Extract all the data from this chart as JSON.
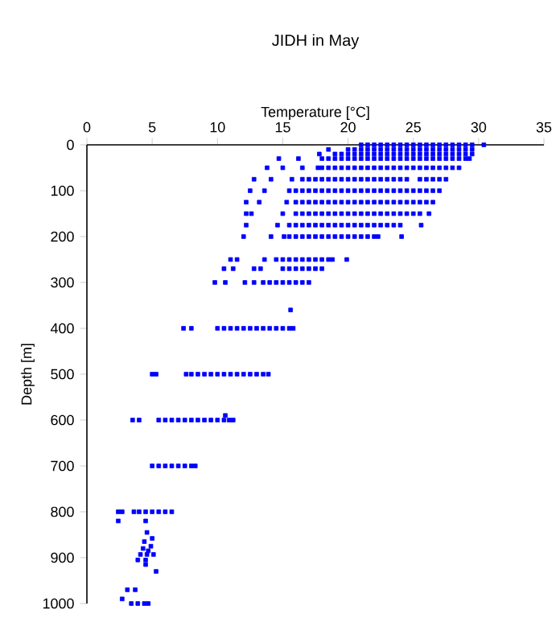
{
  "chart_data": {
    "type": "scatter",
    "title": "JIDH in May",
    "xlabel": "Temperature [°C]",
    "ylabel": "Depth [m]",
    "xlim": [
      0,
      35
    ],
    "xticks": [
      0,
      5,
      10,
      15,
      20,
      25,
      30,
      35
    ],
    "ylim": [
      1000,
      0
    ],
    "yticks": [
      0,
      100,
      200,
      300,
      400,
      500,
      600,
      700,
      800,
      900,
      1000
    ],
    "marker": "square",
    "series": [
      {
        "color": "#0000ff",
        "x": [
          21,
          21.5,
          22,
          22.5,
          23,
          23.5,
          24,
          24.5,
          25,
          25.5,
          26,
          26.5,
          27,
          27.5,
          28,
          28.5,
          29,
          29.5,
          30.4
        ],
        "values": [
          0,
          0,
          0,
          0,
          0,
          0,
          0,
          0,
          0,
          0,
          0,
          0,
          0,
          0,
          0,
          0,
          0,
          0,
          0
        ]
      },
      {
        "color": "#0000ff",
        "x": [
          18.5,
          20,
          20.5,
          21,
          21.5,
          22,
          22.5,
          23,
          23.5,
          24,
          24.5,
          25,
          25.5,
          26,
          26.5,
          27,
          27.5,
          28,
          28.5,
          29,
          29.5
        ],
        "values": [
          10,
          10,
          10,
          10,
          10,
          10,
          10,
          10,
          10,
          10,
          10,
          10,
          10,
          10,
          10,
          10,
          10,
          10,
          10,
          10,
          10
        ]
      },
      {
        "color": "#0000ff",
        "x": [
          17.8,
          19,
          19.5,
          20,
          20.5,
          21,
          21.5,
          22,
          22.5,
          23,
          23.5,
          24,
          24.5,
          25,
          25.5,
          26,
          26.5,
          27,
          27.5,
          28,
          28.5,
          29,
          29.5
        ],
        "values": [
          20,
          20,
          20,
          20,
          20,
          20,
          20,
          20,
          20,
          20,
          20,
          20,
          20,
          20,
          20,
          20,
          20,
          20,
          20,
          20,
          20,
          20,
          20
        ]
      },
      {
        "color": "#0000ff",
        "x": [
          14.7,
          16.2,
          18,
          18.5,
          19,
          19.5,
          20,
          20.5,
          21,
          21.5,
          22,
          22.5,
          23,
          23.5,
          24,
          24.5,
          25,
          25.5,
          26,
          26.5,
          27,
          27.5,
          28,
          28.5,
          29,
          29.3
        ],
        "values": [
          30,
          30,
          30,
          30,
          30,
          30,
          30,
          30,
          30,
          30,
          30,
          30,
          30,
          30,
          30,
          30,
          30,
          30,
          30,
          30,
          30,
          30,
          30,
          30,
          30,
          30
        ]
      },
      {
        "color": "#0000ff",
        "x": [
          13.8,
          15,
          16.5,
          17.7,
          18,
          18.5,
          19,
          19.5,
          20,
          20.5,
          21,
          21.5,
          22,
          22.5,
          23,
          23.5,
          24,
          24.5,
          25,
          25.5,
          26,
          26.5,
          27,
          27.5,
          28,
          28.5
        ],
        "values": [
          50,
          50,
          50,
          50,
          50,
          50,
          50,
          50,
          50,
          50,
          50,
          50,
          50,
          50,
          50,
          50,
          50,
          50,
          50,
          50,
          50,
          50,
          50,
          50,
          50,
          50
        ]
      },
      {
        "color": "#0000ff",
        "x": [
          12.8,
          14.1,
          15.7,
          16.5,
          17,
          17.5,
          18,
          18.5,
          19,
          19.5,
          20,
          20.5,
          21,
          21.5,
          22,
          22.5,
          23,
          23.5,
          24,
          24.5,
          25.5,
          26,
          26.5,
          27,
          27.5
        ],
        "values": [
          75,
          75,
          75,
          75,
          75,
          75,
          75,
          75,
          75,
          75,
          75,
          75,
          75,
          75,
          75,
          75,
          75,
          75,
          75,
          75,
          75,
          75,
          75,
          75,
          75
        ]
      },
      {
        "color": "#0000ff",
        "x": [
          12.5,
          13.6,
          15.5,
          16,
          16.5,
          17,
          17.5,
          18,
          18.5,
          19,
          19.5,
          20,
          20.5,
          21,
          21.5,
          22,
          22.5,
          23,
          23.5,
          24,
          24.5,
          25,
          25.5,
          26,
          26.5,
          27
        ],
        "values": [
          100,
          100,
          100,
          100,
          100,
          100,
          100,
          100,
          100,
          100,
          100,
          100,
          100,
          100,
          100,
          100,
          100,
          100,
          100,
          100,
          100,
          100,
          100,
          100,
          100,
          100
        ]
      },
      {
        "color": "#0000ff",
        "x": [
          12.2,
          13.2,
          15.3,
          16,
          16.5,
          17,
          17.5,
          18,
          18.5,
          19,
          19.5,
          20,
          20.5,
          21,
          21.5,
          22,
          22.5,
          23,
          23.5,
          24,
          24.5,
          25,
          25.5,
          26,
          26.5
        ],
        "values": [
          125,
          125,
          125,
          125,
          125,
          125,
          125,
          125,
          125,
          125,
          125,
          125,
          125,
          125,
          125,
          125,
          125,
          125,
          125,
          125,
          125,
          125,
          125,
          125,
          125
        ]
      },
      {
        "color": "#0000ff",
        "x": [
          12.2,
          12.6,
          15,
          16,
          16.5,
          17,
          17.5,
          18,
          18.5,
          19,
          19.5,
          20,
          20.5,
          21,
          21.5,
          22,
          22.5,
          23,
          23.5,
          24,
          24.5,
          25,
          25.5,
          26.2
        ],
        "values": [
          150,
          150,
          150,
          150,
          150,
          150,
          150,
          150,
          150,
          150,
          150,
          150,
          150,
          150,
          150,
          150,
          150,
          150,
          150,
          150,
          150,
          150,
          150,
          150
        ]
      },
      {
        "color": "#0000ff",
        "x": [
          12.2,
          14.6,
          15.5,
          16,
          16.5,
          17,
          17.5,
          18,
          18.5,
          19,
          19.5,
          20,
          20.5,
          21,
          21.5,
          22,
          22.5,
          23,
          23.5,
          24,
          25.6
        ],
        "values": [
          175,
          175,
          175,
          175,
          175,
          175,
          175,
          175,
          175,
          175,
          175,
          175,
          175,
          175,
          175,
          175,
          175,
          175,
          175,
          175,
          175
        ]
      },
      {
        "color": "#0000ff",
        "x": [
          12,
          14.1,
          15.1,
          15.5,
          16,
          16.5,
          17,
          17.5,
          18,
          18.5,
          19,
          19.5,
          20,
          20.5,
          21,
          21.5,
          22,
          22.3,
          24.1
        ],
        "values": [
          200,
          200,
          200,
          200,
          200,
          200,
          200,
          200,
          200,
          200,
          200,
          200,
          200,
          200,
          200,
          200,
          200,
          200,
          200
        ]
      },
      {
        "color": "#0000ff",
        "x": [
          11,
          11.5,
          13.6,
          14.5,
          15,
          15.5,
          16,
          16.5,
          17,
          17.5,
          18,
          18.5,
          18.8,
          19.9
        ],
        "values": [
          250,
          250,
          250,
          250,
          250,
          250,
          250,
          250,
          250,
          250,
          250,
          250,
          250,
          250
        ]
      },
      {
        "color": "#0000ff",
        "x": [
          10.5,
          11.2,
          12.8,
          13.3,
          15,
          15.5,
          16,
          16.5,
          17,
          17.5,
          18
        ],
        "values": [
          270,
          270,
          270,
          270,
          270,
          270,
          270,
          270,
          270,
          270,
          270
        ]
      },
      {
        "color": "#0000ff",
        "x": [
          9.8,
          10.6,
          12.1,
          12.8,
          13.5,
          14,
          14.5,
          15,
          15.5,
          16,
          16.5,
          17
        ],
        "values": [
          300,
          300,
          300,
          300,
          300,
          300,
          300,
          300,
          300,
          300,
          300,
          300
        ]
      },
      {
        "color": "#0000ff",
        "x": [
          15.6
        ],
        "values": [
          360
        ]
      },
      {
        "color": "#0000ff",
        "x": [
          7.4,
          8,
          10,
          10.5,
          11,
          11.5,
          12,
          12.5,
          13,
          13.5,
          14,
          14.5,
          15,
          15.5,
          15.8
        ],
        "values": [
          400,
          400,
          400,
          400,
          400,
          400,
          400,
          400,
          400,
          400,
          400,
          400,
          400,
          400,
          400
        ]
      },
      {
        "color": "#0000ff",
        "x": [
          5,
          5.3,
          7.6,
          8,
          8.5,
          9,
          9.5,
          10,
          10.5,
          11,
          11.5,
          12,
          12.5,
          13,
          13.5,
          13.9
        ],
        "values": [
          500,
          500,
          500,
          500,
          500,
          500,
          500,
          500,
          500,
          500,
          500,
          500,
          500,
          500,
          500,
          500
        ]
      },
      {
        "color": "#0000ff",
        "x": [
          10.6
        ],
        "values": [
          590
        ]
      },
      {
        "color": "#0000ff",
        "x": [
          3.5,
          4,
          5.5,
          6,
          6.5,
          7,
          7.5,
          8,
          8.5,
          9,
          9.5,
          10,
          10.5,
          10.9,
          11.2
        ],
        "values": [
          600,
          600,
          600,
          600,
          600,
          600,
          600,
          600,
          600,
          600,
          600,
          600,
          600,
          600,
          600
        ]
      },
      {
        "color": "#0000ff",
        "x": [
          5,
          5.5,
          6,
          6.5,
          7,
          7.5,
          8,
          8.3
        ],
        "values": [
          700,
          700,
          700,
          700,
          700,
          700,
          700,
          700
        ]
      },
      {
        "color": "#0000ff",
        "x": [
          2.4,
          2.7,
          3.6,
          4,
          4.5,
          5,
          5.5,
          6,
          6.5
        ],
        "values": [
          800,
          800,
          800,
          800,
          800,
          800,
          800,
          800,
          800
        ]
      },
      {
        "color": "#0000ff",
        "x": [
          2.4,
          4.5,
          4.6,
          5,
          4.4,
          4.9,
          4.3,
          4.7,
          4.1,
          4.6,
          5.1,
          3.9,
          4.5,
          4.5,
          5.3,
          3.1,
          3.7,
          2.7,
          3.4,
          3.9,
          4.4,
          4.7
        ],
        "values": [
          820,
          820,
          845,
          858,
          865,
          875,
          880,
          885,
          893,
          893,
          893,
          905,
          905,
          915,
          930,
          970,
          970,
          990,
          1000,
          1000,
          1000,
          1000
        ]
      }
    ]
  }
}
